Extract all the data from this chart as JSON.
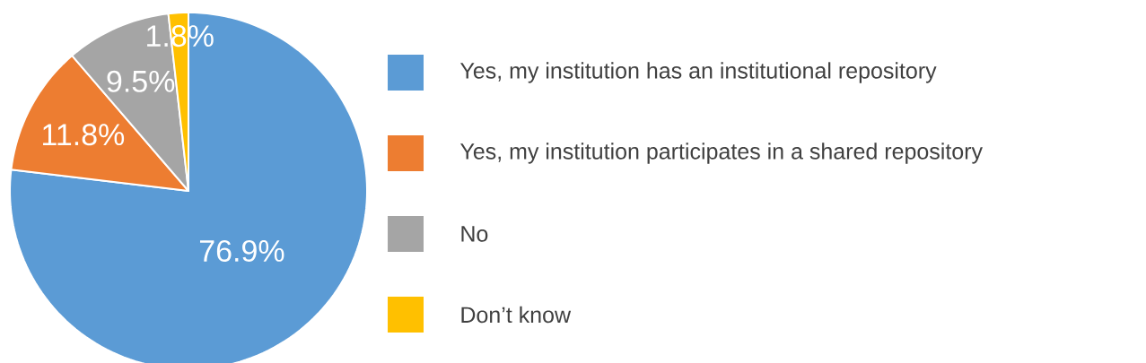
{
  "chart_data": {
    "type": "pie",
    "categories": [
      "Yes, my institution has an institutional repository",
      "Yes, my institution participates in a shared repository",
      "No",
      "Don’t know"
    ],
    "values": [
      76.9,
      11.8,
      9.5,
      1.8
    ],
    "colors": [
      "#5b9bd5",
      "#ed7d31",
      "#a5a5a5",
      "#ffc000"
    ],
    "value_labels": [
      "76.9%",
      "11.8%",
      "9.5%",
      "1.8%"
    ],
    "legend": "right"
  }
}
